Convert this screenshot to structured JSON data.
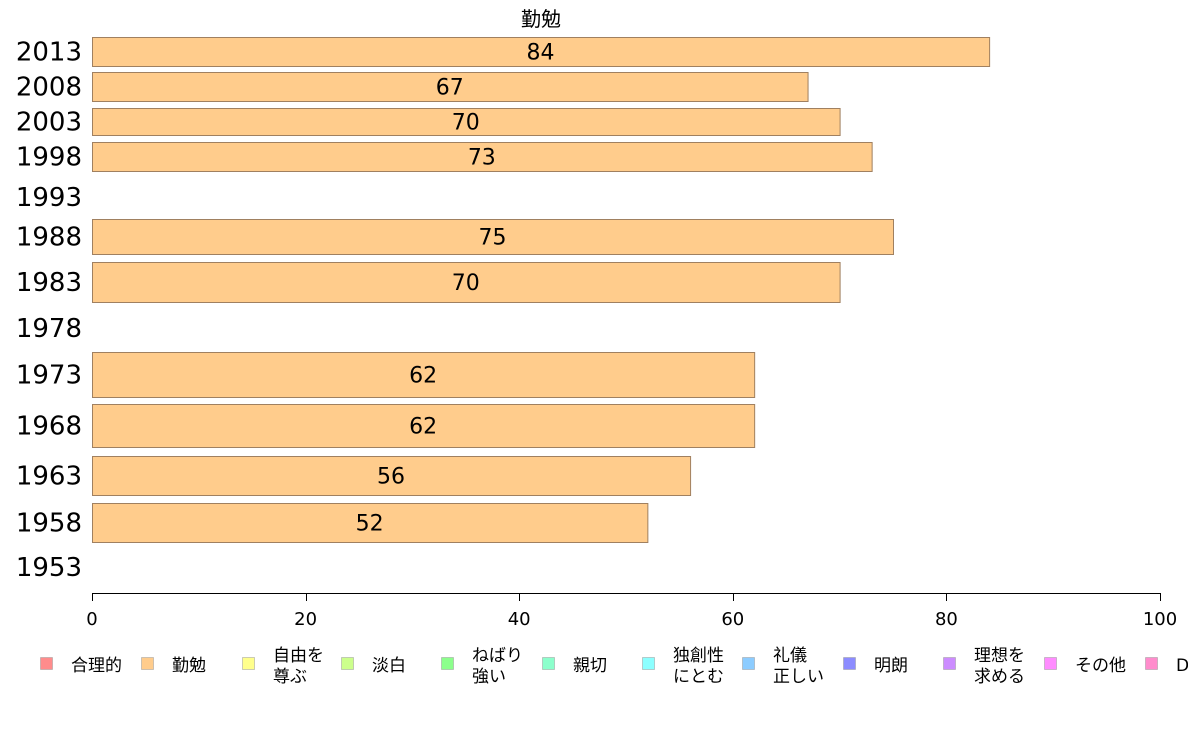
{
  "chart_data": {
    "type": "bar",
    "orientation": "horizontal",
    "title": "勤勉",
    "xlim": [
      0,
      100
    ],
    "x_ticks": [
      0,
      20,
      40,
      60,
      80,
      100
    ],
    "grid": false,
    "legend_position": "bottom",
    "categories": [
      "2013",
      "2008",
      "2003",
      "1998",
      "1993",
      "1988",
      "1983",
      "1978",
      "1973",
      "1968",
      "1963",
      "1958",
      "1953"
    ],
    "series": [
      {
        "name": "勤勉",
        "color": "#FFCC8C",
        "values": [
          84,
          67,
          70,
          73,
          null,
          75,
          70,
          null,
          62,
          62,
          56,
          52,
          null
        ],
        "labels": [
          "84",
          "67",
          "70",
          "73",
          "",
          "75",
          "70",
          "",
          "62",
          "62",
          "56",
          "52",
          ""
        ]
      }
    ],
    "legend": [
      {
        "lines": [
          "合理的"
        ],
        "color": "#FF8C8C"
      },
      {
        "lines": [
          "勤勉"
        ],
        "color": "#FFCC8C"
      },
      {
        "lines": [
          "自由を",
          "尊ぶ"
        ],
        "color": "#FFFF8C"
      },
      {
        "lines": [
          "淡白"
        ],
        "color": "#CCFF8C"
      },
      {
        "lines": [
          "ねばり",
          "強い"
        ],
        "color": "#8CFF8C"
      },
      {
        "lines": [
          "親切"
        ],
        "color": "#8CFFCC"
      },
      {
        "lines": [
          "独創性",
          "にとむ"
        ],
        "color": "#8CFFFF"
      },
      {
        "lines": [
          "礼儀",
          "正しい"
        ],
        "color": "#8CCCFF"
      },
      {
        "lines": [
          "明朗"
        ],
        "color": "#8C8CFF"
      },
      {
        "lines": [
          "理想を",
          "求める"
        ],
        "color": "#CC8CFF"
      },
      {
        "lines": [
          "その他"
        ],
        "color": "#FF8CFF"
      },
      {
        "lines": [
          "D"
        ],
        "color": "#FF8CCC"
      }
    ]
  }
}
